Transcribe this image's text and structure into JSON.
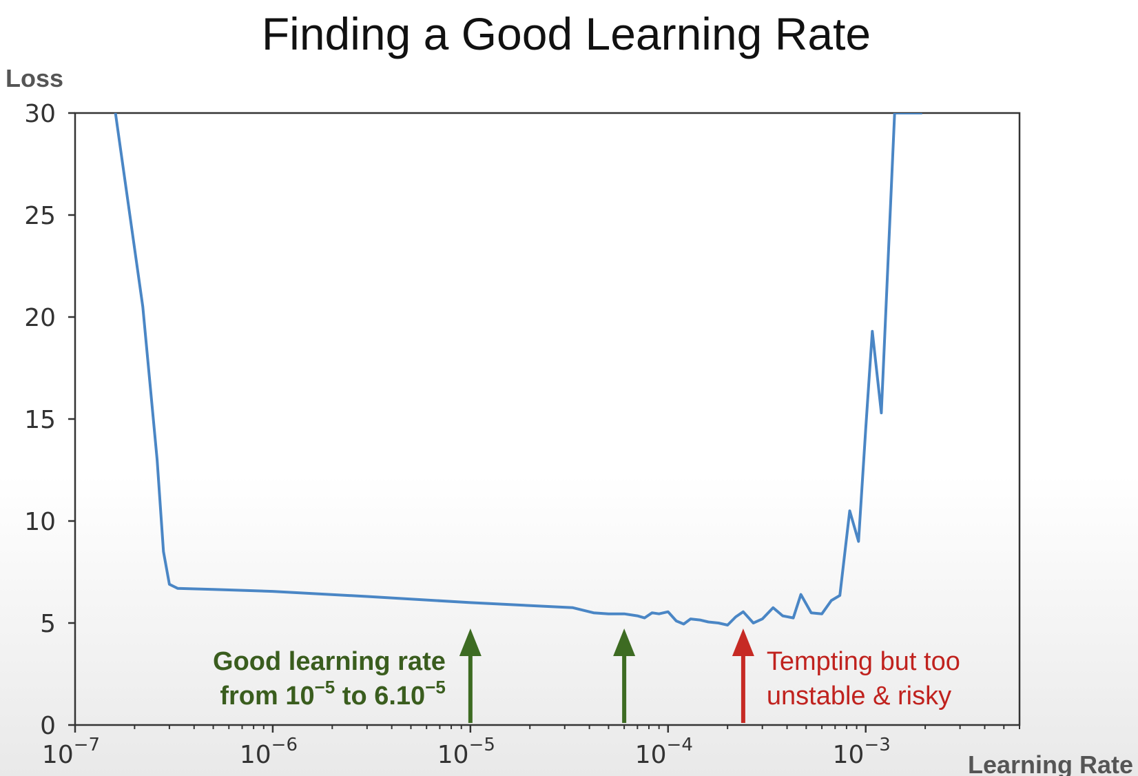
{
  "chart_data": {
    "type": "line",
    "title": "Finding a Good Learning Rate",
    "ylabel": "Loss",
    "xlabel": "Learning Rate",
    "x_scale": "log",
    "xlim": [
      1e-07,
      0.006
    ],
    "ylim": [
      0,
      30
    ],
    "yticks": [
      0,
      5,
      10,
      15,
      20,
      25,
      30
    ],
    "xticks": [
      {
        "value": 1e-07,
        "base": "10",
        "exp": "−7"
      },
      {
        "value": 1e-06,
        "base": "10",
        "exp": "−6"
      },
      {
        "value": 1e-05,
        "base": "10",
        "exp": "−5"
      },
      {
        "value": 0.0001,
        "base": "10",
        "exp": "−4"
      },
      {
        "value": 0.001,
        "base": "10",
        "exp": "−3"
      }
    ],
    "grid": false,
    "series_color": "#4a86c5",
    "series": [
      {
        "x": [
          1.6e-07,
          2.2e-07,
          2.6e-07,
          2.8e-07,
          3e-07,
          3.3e-07,
          5e-07,
          1e-06,
          3e-06,
          1e-05,
          3.3e-05,
          4.2e-05,
          5e-05,
          6e-05,
          7e-05,
          7.6e-05,
          8.3e-05,
          9e-05,
          0.0001,
          0.00011,
          0.00012,
          0.00013,
          0.000145,
          0.00016,
          0.00018,
          0.0002,
          0.00022,
          0.00024,
          0.00027,
          0.0003,
          0.00034,
          0.00038,
          0.00043,
          0.00047,
          0.00053,
          0.0006,
          0.00067,
          0.00074,
          0.00083,
          0.00092,
          0.001,
          0.00108,
          0.0012,
          0.0014,
          0.00155,
          0.00172,
          0.00193
        ],
        "y": [
          30,
          20.5,
          13,
          8.5,
          6.9,
          6.7,
          6.65,
          6.55,
          6.3,
          6.0,
          5.75,
          5.5,
          5.45,
          5.45,
          5.35,
          5.25,
          5.5,
          5.45,
          5.55,
          5.1,
          4.95,
          5.2,
          5.15,
          5.05,
          5.0,
          4.9,
          5.3,
          5.55,
          5.0,
          5.2,
          5.75,
          5.35,
          5.25,
          6.4,
          5.5,
          5.45,
          6.1,
          6.35,
          10.5,
          9.0,
          14.5,
          19.3,
          15.3,
          30,
          30,
          30,
          30
        ]
      }
    ],
    "annotations": [
      {
        "x": 1e-05,
        "color": "#3d6b22",
        "line1": "Good learning rate",
        "line2_prefix": "from 10",
        "line2_exp1": "−5",
        "line2_mid": " to 6.10",
        "line2_exp2": "−5"
      },
      {
        "x": 6e-05,
        "color": "#3d6b22"
      },
      {
        "x": 0.00024,
        "color": "#c62a24",
        "line1": "Tempting but too",
        "line2": "unstable & risky"
      }
    ]
  }
}
